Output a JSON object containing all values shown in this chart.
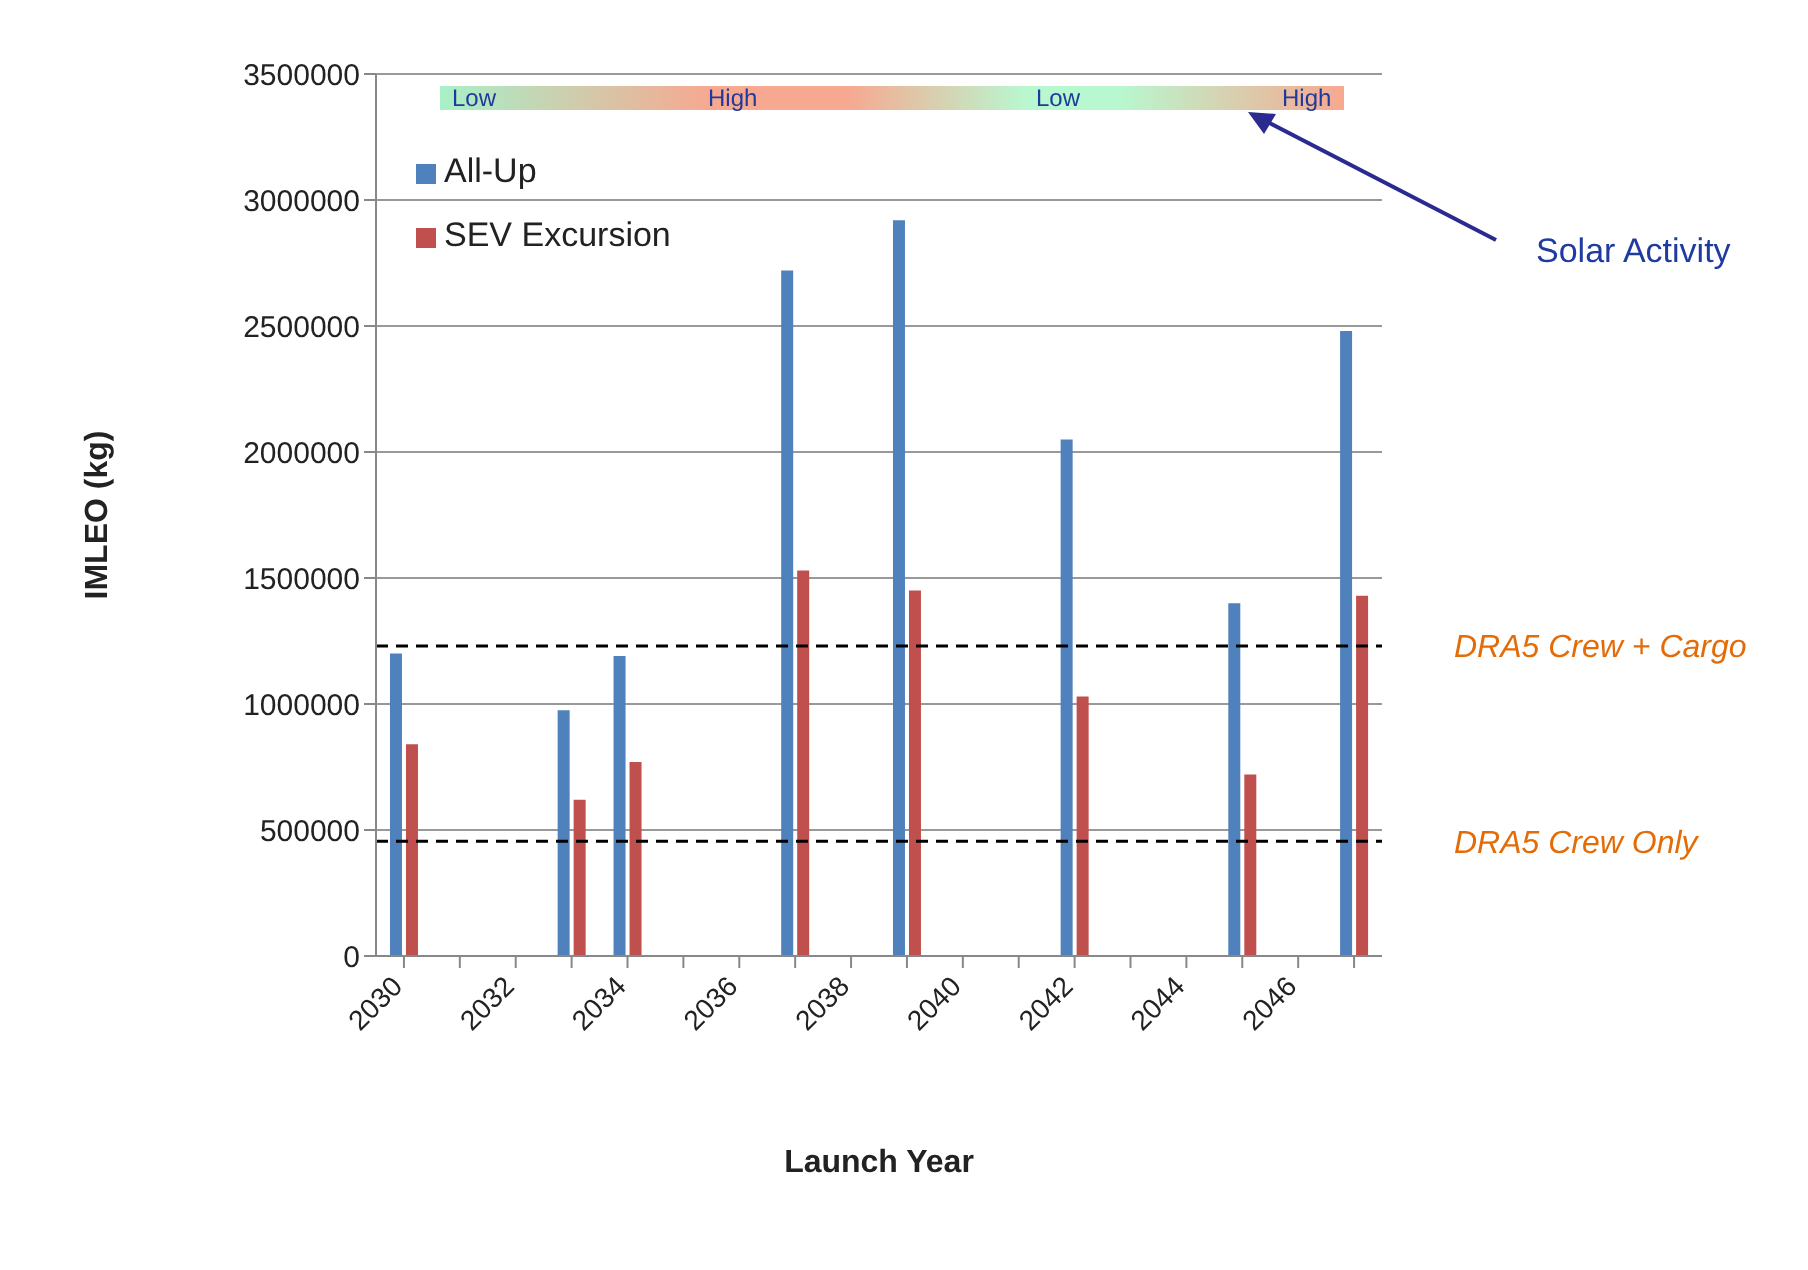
{
  "chart_data": {
    "type": "bar",
    "xlabel": "Launch Year",
    "ylabel": "IMLEO (kg)",
    "categories": [
      "2030",
      null,
      "2032",
      null,
      "2034",
      null,
      "2036",
      null,
      "2038",
      null,
      "2040",
      null,
      "2042",
      null,
      "2044",
      null,
      "2046",
      null
    ],
    "series": [
      {
        "name": "All-Up",
        "color": "#4f81bd",
        "values": [
          1200000,
          null,
          null,
          975000,
          1190000,
          null,
          null,
          2720000,
          null,
          2920000,
          null,
          null,
          2050000,
          null,
          null,
          1400000,
          null,
          2480000
        ]
      },
      {
        "name": "SEV Excursion",
        "color": "#c0504d",
        "values": [
          840000,
          null,
          null,
          620000,
          770000,
          null,
          null,
          1530000,
          null,
          1450000,
          null,
          null,
          1030000,
          null,
          null,
          720000,
          null,
          1430000
        ]
      }
    ],
    "ylim": [
      0,
      3500000
    ],
    "yticks": [
      0,
      500000,
      1000000,
      1500000,
      2000000,
      2500000,
      3000000,
      3500000
    ],
    "grid": "y",
    "legend": "top left",
    "ref_lines": [
      {
        "axis": "y",
        "value": 1230000,
        "label": "DRA5 Crew + Cargo",
        "color": "#000000",
        "line_style": "dashed"
      },
      {
        "axis": "y",
        "value": 455000,
        "label": "DRA5 Crew Only",
        "color": "#000000",
        "line_style": "dashed"
      }
    ],
    "annotations": [
      "Low",
      "High",
      "Low",
      "High",
      "Solar Activity"
    ]
  }
}
